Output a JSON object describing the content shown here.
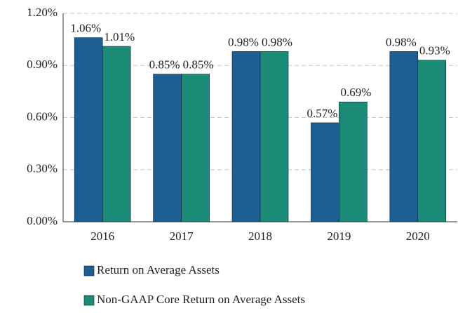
{
  "chart_data": {
    "type": "bar",
    "categories": [
      "2016",
      "2017",
      "2018",
      "2019",
      "2020"
    ],
    "series": [
      {
        "name": "Return on Average Assets",
        "color": "#1d5f93",
        "values": [
          1.06,
          0.85,
          0.98,
          0.57,
          0.98
        ],
        "value_labels": [
          "1.06%",
          "0.85%",
          "0.98%",
          "0.57%",
          "0.98%"
        ]
      },
      {
        "name": "Non-GAAP Core Return on Average Assets",
        "color": "#1b8a77",
        "values": [
          1.01,
          0.85,
          0.98,
          0.69,
          0.93
        ],
        "value_labels": [
          "1.01%",
          "0.85%",
          "0.98%",
          "0.69%",
          "0.93%"
        ]
      }
    ],
    "ylim": [
      0,
      1.2
    ],
    "yticks": [
      {
        "value": 0,
        "label": "0.00%"
      },
      {
        "value": 0.3,
        "label": "0.30%"
      },
      {
        "value": 0.6,
        "label": "0.60%"
      },
      {
        "value": 0.9,
        "label": "0.90%"
      },
      {
        "value": 1.2,
        "label": "1.20%"
      }
    ],
    "grid": true
  }
}
